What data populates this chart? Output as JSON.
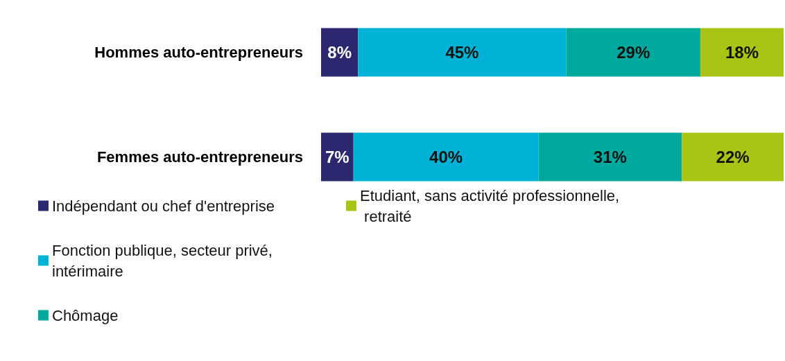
{
  "chart_data": {
    "type": "bar",
    "orientation": "horizontal",
    "stacked": true,
    "categories": [
      "Hommes auto-entrepreneurs",
      "Femmes auto-entrepreneurs"
    ],
    "series": [
      {
        "name": "Indépendant ou chef d'entreprise",
        "color": "#2b2870",
        "values": [
          8,
          7
        ],
        "value_labels": [
          "8%",
          "7%"
        ]
      },
      {
        "name": "Fonction publique, secteur privé, intérimaire",
        "color": "#00b2d6",
        "values": [
          45,
          40
        ],
        "value_labels": [
          "45%",
          "40%"
        ]
      },
      {
        "name": "Chômage",
        "color": "#00a99d",
        "values": [
          29,
          31
        ],
        "value_labels": [
          "29%",
          "31%"
        ]
      },
      {
        "name": "Etudiant, sans activité professionnelle, retraité",
        "color": "#a9c414",
        "values": [
          18,
          22
        ],
        "value_labels": [
          "18%",
          "22%"
        ]
      }
    ],
    "xlim": [
      0,
      100
    ],
    "tick_labels": "y",
    "legend": "bottom left"
  }
}
